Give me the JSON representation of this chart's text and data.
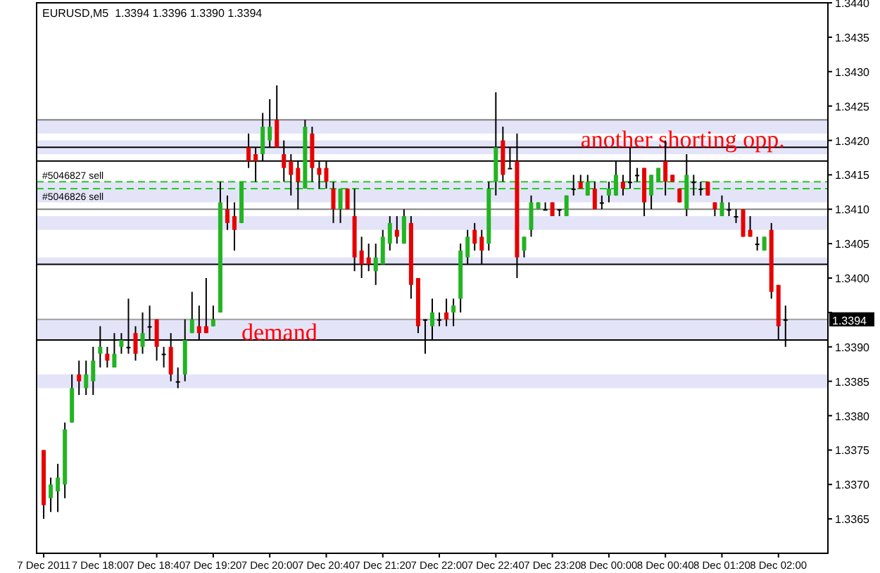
{
  "chart_data": {
    "type": "candlestick",
    "title": "EURUSD,M5  1.3394 1.3396 1.3390 1.3394",
    "x": [
      "2011-12-07T17:20",
      "2011-12-07T17:25",
      "2011-12-07T17:30",
      "2011-12-07T17:35",
      "2011-12-07T17:40",
      "2011-12-07T17:45",
      "2011-12-07T17:50",
      "2011-12-07T17:55",
      "2011-12-07T18:00",
      "2011-12-07T18:05",
      "2011-12-07T18:10",
      "2011-12-07T18:15",
      "2011-12-07T18:20",
      "2011-12-07T18:25",
      "2011-12-07T18:30",
      "2011-12-07T18:35",
      "2011-12-07T18:40",
      "2011-12-07T18:45",
      "2011-12-07T18:50",
      "2011-12-07T18:55",
      "2011-12-07T19:00",
      "2011-12-07T19:05",
      "2011-12-07T19:10",
      "2011-12-07T19:15",
      "2011-12-07T19:20",
      "2011-12-07T19:25",
      "2011-12-07T19:30",
      "2011-12-07T19:35",
      "2011-12-07T19:40",
      "2011-12-07T19:45",
      "2011-12-07T19:50",
      "2011-12-07T19:55",
      "2011-12-07T20:00",
      "2011-12-07T20:05",
      "2011-12-07T20:10",
      "2011-12-07T20:15",
      "2011-12-07T20:20",
      "2011-12-07T20:25",
      "2011-12-07T20:30",
      "2011-12-07T20:35",
      "2011-12-07T20:40",
      "2011-12-07T20:45",
      "2011-12-07T20:50",
      "2011-12-07T20:55",
      "2011-12-07T21:00",
      "2011-12-07T21:05",
      "2011-12-07T21:10",
      "2011-12-07T21:15",
      "2011-12-07T21:20",
      "2011-12-07T21:25",
      "2011-12-07T21:30",
      "2011-12-07T21:35",
      "2011-12-07T21:40",
      "2011-12-07T21:45",
      "2011-12-07T21:50",
      "2011-12-07T21:55",
      "2011-12-07T22:00",
      "2011-12-07T22:05",
      "2011-12-07T22:10",
      "2011-12-07T22:15",
      "2011-12-07T22:20",
      "2011-12-07T22:25",
      "2011-12-07T22:30",
      "2011-12-07T22:35",
      "2011-12-07T22:40",
      "2011-12-07T22:45",
      "2011-12-07T22:50",
      "2011-12-07T22:55",
      "2011-12-07T23:00",
      "2011-12-07T23:05",
      "2011-12-07T23:10",
      "2011-12-07T23:15",
      "2011-12-07T23:20",
      "2011-12-07T23:25",
      "2011-12-07T23:30",
      "2011-12-07T23:35",
      "2011-12-07T23:40",
      "2011-12-07T23:45",
      "2011-12-07T23:50",
      "2011-12-07T23:55",
      "2011-12-08T00:00",
      "2011-12-08T00:05",
      "2011-12-08T00:10",
      "2011-12-08T00:15",
      "2011-12-08T00:20",
      "2011-12-08T00:25",
      "2011-12-08T00:30",
      "2011-12-08T00:35",
      "2011-12-08T00:40",
      "2011-12-08T00:45",
      "2011-12-08T00:50",
      "2011-12-08T00:55",
      "2011-12-08T01:00",
      "2011-12-08T01:05",
      "2011-12-08T01:10",
      "2011-12-08T01:15",
      "2011-12-08T01:20",
      "2011-12-08T01:25",
      "2011-12-08T01:30",
      "2011-12-08T01:35",
      "2011-12-08T01:40",
      "2011-12-08T01:45",
      "2011-12-08T01:50",
      "2011-12-08T01:55",
      "2011-12-08T02:00",
      "2011-12-08T02:05"
    ],
    "ohlc": [
      [
        1.3375,
        1.3375,
        1.3365,
        1.3367
      ],
      [
        1.3368,
        1.3371,
        1.3366,
        1.337
      ],
      [
        1.3369,
        1.3373,
        1.3366,
        1.3371
      ],
      [
        1.337,
        1.3379,
        1.3368,
        1.3378
      ],
      [
        1.3379,
        1.3386,
        1.3379,
        1.3384
      ],
      [
        1.3386,
        1.3388,
        1.3383,
        1.3385
      ],
      [
        1.3384,
        1.3388,
        1.3383,
        1.3386
      ],
      [
        1.3385,
        1.339,
        1.3383,
        1.3388
      ],
      [
        1.3389,
        1.3393,
        1.3387,
        1.339
      ],
      [
        1.3389,
        1.339,
        1.3387,
        1.3388
      ],
      [
        1.3387,
        1.3392,
        1.3387,
        1.3389
      ],
      [
        1.339,
        1.3392,
        1.3389,
        1.3391
      ],
      [
        1.339,
        1.3397,
        1.3389,
        1.339
      ],
      [
        1.3392,
        1.3393,
        1.3388,
        1.3389
      ],
      [
        1.339,
        1.3395,
        1.3389,
        1.3392
      ],
      [
        1.3393,
        1.3396,
        1.3391,
        1.3393
      ],
      [
        1.3394,
        1.3394,
        1.3388,
        1.339
      ],
      [
        1.3389,
        1.339,
        1.3387,
        1.3389
      ],
      [
        1.339,
        1.3392,
        1.3385,
        1.3386
      ],
      [
        1.3385,
        1.3387,
        1.3384,
        1.3385
      ],
      [
        1.3386,
        1.3394,
        1.3385,
        1.3391
      ],
      [
        1.3392,
        1.3398,
        1.3392,
        1.3394
      ],
      [
        1.3393,
        1.3396,
        1.3391,
        1.3392
      ],
      [
        1.3393,
        1.34,
        1.3392,
        1.3392
      ],
      [
        1.3393,
        1.3396,
        1.3393,
        1.3394
      ],
      [
        1.3395,
        1.3414,
        1.3395,
        1.3411
      ],
      [
        1.341,
        1.3412,
        1.3407,
        1.3408
      ],
      [
        1.3409,
        1.3411,
        1.3404,
        1.3407
      ],
      [
        1.3408,
        1.3414,
        1.3408,
        1.3414
      ],
      [
        1.3419,
        1.3421,
        1.3416,
        1.3417
      ],
      [
        1.3418,
        1.3419,
        1.3414,
        1.3417
      ],
      [
        1.3418,
        1.3424,
        1.3417,
        1.3422
      ],
      [
        1.342,
        1.3426,
        1.3419,
        1.3422
      ],
      [
        1.3423,
        1.3428,
        1.3419,
        1.3419
      ],
      [
        1.3418,
        1.342,
        1.3414,
        1.3416
      ],
      [
        1.3417,
        1.3418,
        1.3412,
        1.3415
      ],
      [
        1.3416,
        1.3417,
        1.341,
        1.3414
      ],
      [
        1.3413,
        1.3423,
        1.3413,
        1.3422
      ],
      [
        1.3421,
        1.3422,
        1.3414,
        1.3416
      ],
      [
        1.3416,
        1.3417,
        1.3413,
        1.3415
      ],
      [
        1.3416,
        1.3417,
        1.3413,
        1.3414
      ],
      [
        1.3413,
        1.3414,
        1.3408,
        1.341
      ],
      [
        1.341,
        1.3413,
        1.3408,
        1.3413
      ],
      [
        1.3413,
        1.3413,
        1.341,
        1.341
      ],
      [
        1.3409,
        1.3413,
        1.3401,
        1.3403
      ],
      [
        1.3404,
        1.3406,
        1.34,
        1.3402
      ],
      [
        1.3403,
        1.3405,
        1.3401,
        1.3402
      ],
      [
        1.3401,
        1.3405,
        1.3399,
        1.3403
      ],
      [
        1.3402,
        1.3407,
        1.3402,
        1.3406
      ],
      [
        1.3405,
        1.3409,
        1.3404,
        1.3408
      ],
      [
        1.3407,
        1.3409,
        1.3405,
        1.3406
      ],
      [
        1.3405,
        1.341,
        1.3405,
        1.3409
      ],
      [
        1.3408,
        1.3409,
        1.3397,
        1.3399
      ],
      [
        1.34,
        1.34,
        1.3392,
        1.3393
      ],
      [
        1.3394,
        1.3394,
        1.3389,
        1.3394
      ],
      [
        1.3393,
        1.3397,
        1.3391,
        1.3395
      ],
      [
        1.3394,
        1.3395,
        1.3393,
        1.3394
      ],
      [
        1.3395,
        1.3397,
        1.3393,
        1.3394
      ],
      [
        1.3395,
        1.3397,
        1.3393,
        1.3396
      ],
      [
        1.3397,
        1.3405,
        1.3395,
        1.3404
      ],
      [
        1.3403,
        1.3407,
        1.3402,
        1.3406
      ],
      [
        1.3407,
        1.3408,
        1.3404,
        1.3405
      ],
      [
        1.3406,
        1.3407,
        1.3402,
        1.3404
      ],
      [
        1.3405,
        1.3414,
        1.3404,
        1.3413
      ],
      [
        1.3414,
        1.3427,
        1.3412,
        1.3419
      ],
      [
        1.342,
        1.3422,
        1.3414,
        1.3415
      ],
      [
        1.3416,
        1.3419,
        1.3416,
        1.3416
      ],
      [
        1.3417,
        1.3421,
        1.34,
        1.3403
      ],
      [
        1.3404,
        1.3406,
        1.3403,
        1.3406
      ],
      [
        1.3407,
        1.3412,
        1.3406,
        1.3411
      ],
      [
        1.341,
        1.3411,
        1.341,
        1.3411
      ],
      [
        1.341,
        1.3411,
        1.341,
        1.341
      ],
      [
        1.3411,
        1.3411,
        1.3409,
        1.3409
      ],
      [
        1.341,
        1.341,
        1.3409,
        1.341
      ],
      [
        1.3409,
        1.3412,
        1.3409,
        1.3412
      ],
      [
        1.3413,
        1.3415,
        1.3412,
        1.3413
      ],
      [
        1.3414,
        1.3415,
        1.3413,
        1.3413
      ],
      [
        1.3412,
        1.3415,
        1.3412,
        1.3414
      ],
      [
        1.3413,
        1.3414,
        1.341,
        1.341
      ],
      [
        1.3411,
        1.3412,
        1.341,
        1.3411
      ],
      [
        1.3412,
        1.3414,
        1.3411,
        1.3413
      ],
      [
        1.3412,
        1.3417,
        1.3412,
        1.3415
      ],
      [
        1.3414,
        1.3415,
        1.3412,
        1.3413
      ],
      [
        1.3414,
        1.3419,
        1.3413,
        1.3414
      ],
      [
        1.3415,
        1.3416,
        1.3414,
        1.3415
      ],
      [
        1.3416,
        1.3416,
        1.3409,
        1.3411
      ],
      [
        1.3412,
        1.3415,
        1.341,
        1.3415
      ],
      [
        1.3414,
        1.3416,
        1.3414,
        1.3416
      ],
      [
        1.3417,
        1.342,
        1.3412,
        1.3414
      ],
      [
        1.3415,
        1.3415,
        1.3414,
        1.3414
      ],
      [
        1.3413,
        1.3413,
        1.3411,
        1.3411
      ],
      [
        1.341,
        1.3418,
        1.3409,
        1.3415
      ],
      [
        1.3414,
        1.3415,
        1.3412,
        1.3414
      ],
      [
        1.3413,
        1.3414,
        1.3412,
        1.3413
      ],
      [
        1.3414,
        1.3414,
        1.3412,
        1.3412
      ],
      [
        1.3411,
        1.3411,
        1.3409,
        1.341
      ],
      [
        1.3409,
        1.3412,
        1.3409,
        1.3411
      ],
      [
        1.341,
        1.3411,
        1.3409,
        1.341
      ],
      [
        1.3409,
        1.341,
        1.3408,
        1.3409
      ],
      [
        1.341,
        1.341,
        1.3406,
        1.3406
      ],
      [
        1.3407,
        1.3409,
        1.3406,
        1.3406
      ],
      [
        1.3405,
        1.3406,
        1.3404,
        1.3405
      ],
      [
        1.3404,
        1.3406,
        1.3404,
        1.3406
      ],
      [
        1.3407,
        1.3408,
        1.3397,
        1.3398
      ],
      [
        1.3399,
        1.3399,
        1.3391,
        1.3393
      ],
      [
        1.3394,
        1.3396,
        1.339,
        1.3394
      ]
    ],
    "colors": [
      "#e60000",
      "#22b422",
      "#22b422",
      "#22b422",
      "#22b422",
      "#e60000",
      "#22b422",
      "#22b422",
      "#22b422",
      "#e60000",
      "#22b422",
      "#22b422",
      "#000000",
      "#e60000",
      "#22b422",
      "#000000",
      "#e60000",
      "#000000",
      "#e60000",
      "#000000",
      "#22b422",
      "#22b422",
      "#e60000",
      "#e60000",
      "#22b422",
      "#22b422",
      "#e60000",
      "#e60000",
      "#22b422",
      "#e60000",
      "#e60000",
      "#22b422",
      "#22b422",
      "#e60000",
      "#e60000",
      "#e60000",
      "#e60000",
      "#22b422",
      "#e60000",
      "#e60000",
      "#e60000",
      "#e60000",
      "#22b422",
      "#e60000",
      "#e60000",
      "#e60000",
      "#e60000",
      "#22b422",
      "#22b422",
      "#22b422",
      "#e60000",
      "#22b422",
      "#e60000",
      "#e60000",
      "#000000",
      "#22b422",
      "#000000",
      "#e60000",
      "#22b422",
      "#22b422",
      "#22b422",
      "#e60000",
      "#e60000",
      "#22b422",
      "#22b422",
      "#e60000",
      "#000000",
      "#e60000",
      "#22b422",
      "#22b422",
      "#22b422",
      "#000000",
      "#e60000",
      "#000000",
      "#22b422",
      "#000000",
      "#e60000",
      "#22b422",
      "#e60000",
      "#000000",
      "#22b422",
      "#22b422",
      "#e60000",
      "#000000",
      "#000000",
      "#e60000",
      "#22b422",
      "#22b422",
      "#e60000",
      "#e60000",
      "#e60000",
      "#22b422",
      "#000000",
      "#000000",
      "#e60000",
      "#e60000",
      "#22b422",
      "#000000",
      "#000000",
      "#e60000",
      "#e60000",
      "#000000",
      "#22b422",
      "#e60000",
      "#e60000",
      "#000000"
    ],
    "xlim": [
      "2011-12-07T17:15",
      "2011-12-08T02:35"
    ],
    "xticks": [
      {
        "value": "2011-12-07T17:20",
        "label": "7 Dec 2011"
      },
      {
        "value": "2011-12-07T18:00",
        "label": "7 Dec 18:00"
      },
      {
        "value": "2011-12-07T18:40",
        "label": "7 Dec 18:40"
      },
      {
        "value": "2011-12-07T19:20",
        "label": "7 Dec 19:20"
      },
      {
        "value": "2011-12-07T20:00",
        "label": "7 Dec 20:00"
      },
      {
        "value": "2011-12-07T20:40",
        "label": "7 Dec 20:40"
      },
      {
        "value": "2011-12-07T21:20",
        "label": "7 Dec 21:20"
      },
      {
        "value": "2011-12-07T22:00",
        "label": "7 Dec 22:00"
      },
      {
        "value": "2011-12-07T22:40",
        "label": "7 Dec 22:40"
      },
      {
        "value": "2011-12-07T23:20",
        "label": "7 Dec 23:20"
      },
      {
        "value": "2011-12-08T00:00",
        "label": "8 Dec 00:00"
      },
      {
        "value": "2011-12-08T00:40",
        "label": "8 Dec 00:40"
      },
      {
        "value": "2011-12-08T01:20",
        "label": "8 Dec 01:20"
      },
      {
        "value": "2011-12-08T02:00",
        "label": "8 Dec 02:00"
      }
    ],
    "ylim": [
      1.336,
      1.344
    ],
    "yticks": [
      {
        "value": 1.3365,
        "label": "1.3365"
      },
      {
        "value": 1.337,
        "label": "1.3370"
      },
      {
        "value": 1.3375,
        "label": "1.3375"
      },
      {
        "value": 1.338,
        "label": "1.3380"
      },
      {
        "value": 1.3385,
        "label": "1.3385"
      },
      {
        "value": 1.339,
        "label": "1.3390"
      },
      {
        "value": 1.3395,
        "label": null
      },
      {
        "value": 1.34,
        "label": "1.3400"
      },
      {
        "value": 1.3405,
        "label": "1.3405"
      },
      {
        "value": 1.341,
        "label": "1.3410"
      },
      {
        "value": 1.3415,
        "label": "1.3415"
      },
      {
        "value": 1.342,
        "label": "1.3420"
      },
      {
        "value": 1.3425,
        "label": "1.3425"
      },
      {
        "value": 1.343,
        "label": "1.3430"
      },
      {
        "value": 1.3435,
        "label": "1.3435"
      },
      {
        "value": 1.344,
        "label": "1.3440"
      }
    ],
    "bands": [
      {
        "axis": "y",
        "from": 1.3421,
        "to": 1.3423,
        "color": "#e4e4f8"
      },
      {
        "axis": "y",
        "from": 1.3418,
        "to": 1.342,
        "color": "#e4e4f8"
      },
      {
        "axis": "y",
        "from": 1.3391,
        "to": 1.3394,
        "color": "#e4e4f8"
      },
      {
        "axis": "y",
        "from": 1.3384,
        "to": 1.3386,
        "color": "#e4e4f8"
      },
      {
        "axis": "y",
        "from": 1.3411,
        "to": 1.3414,
        "color": "#e4e4f8"
      },
      {
        "axis": "y",
        "from": 1.3407,
        "to": 1.3409,
        "color": "#e4e4f8"
      },
      {
        "axis": "y",
        "from": 1.3402,
        "to": 1.3403,
        "color": "#e4e4f8"
      }
    ],
    "ref_lines": [
      {
        "axis": "y",
        "value": 1.3423,
        "color": "#808080"
      },
      {
        "axis": "y",
        "value": 1.3419,
        "color": "#000000"
      },
      {
        "axis": "y",
        "value": 1.3417,
        "color": "#000000"
      },
      {
        "axis": "y",
        "value": 1.3391,
        "color": "#000000"
      },
      {
        "axis": "y",
        "value": 1.3402,
        "color": "#000000"
      },
      {
        "axis": "y",
        "value": 1.341,
        "color": "#808080"
      },
      {
        "axis": "y",
        "value": 1.3394,
        "label": "1.3394",
        "color": "#a0a0a0",
        "line_style": "solid"
      },
      {
        "axis": "y",
        "value": 1.3414,
        "label": "#5046827 sell",
        "color": "#22cc22",
        "line_style": "dashed"
      },
      {
        "axis": "y",
        "value": 1.3413,
        "label": "#5046826 sell",
        "color": "#22cc22",
        "line_style": "dashed"
      }
    ],
    "annotations": [
      {
        "text": "demand",
        "x": "2011-12-07T19:40",
        "y": 1.3391
      },
      {
        "text": "another shorting opp.",
        "x": "2011-12-07T23:40",
        "y": 1.3419
      }
    ]
  }
}
